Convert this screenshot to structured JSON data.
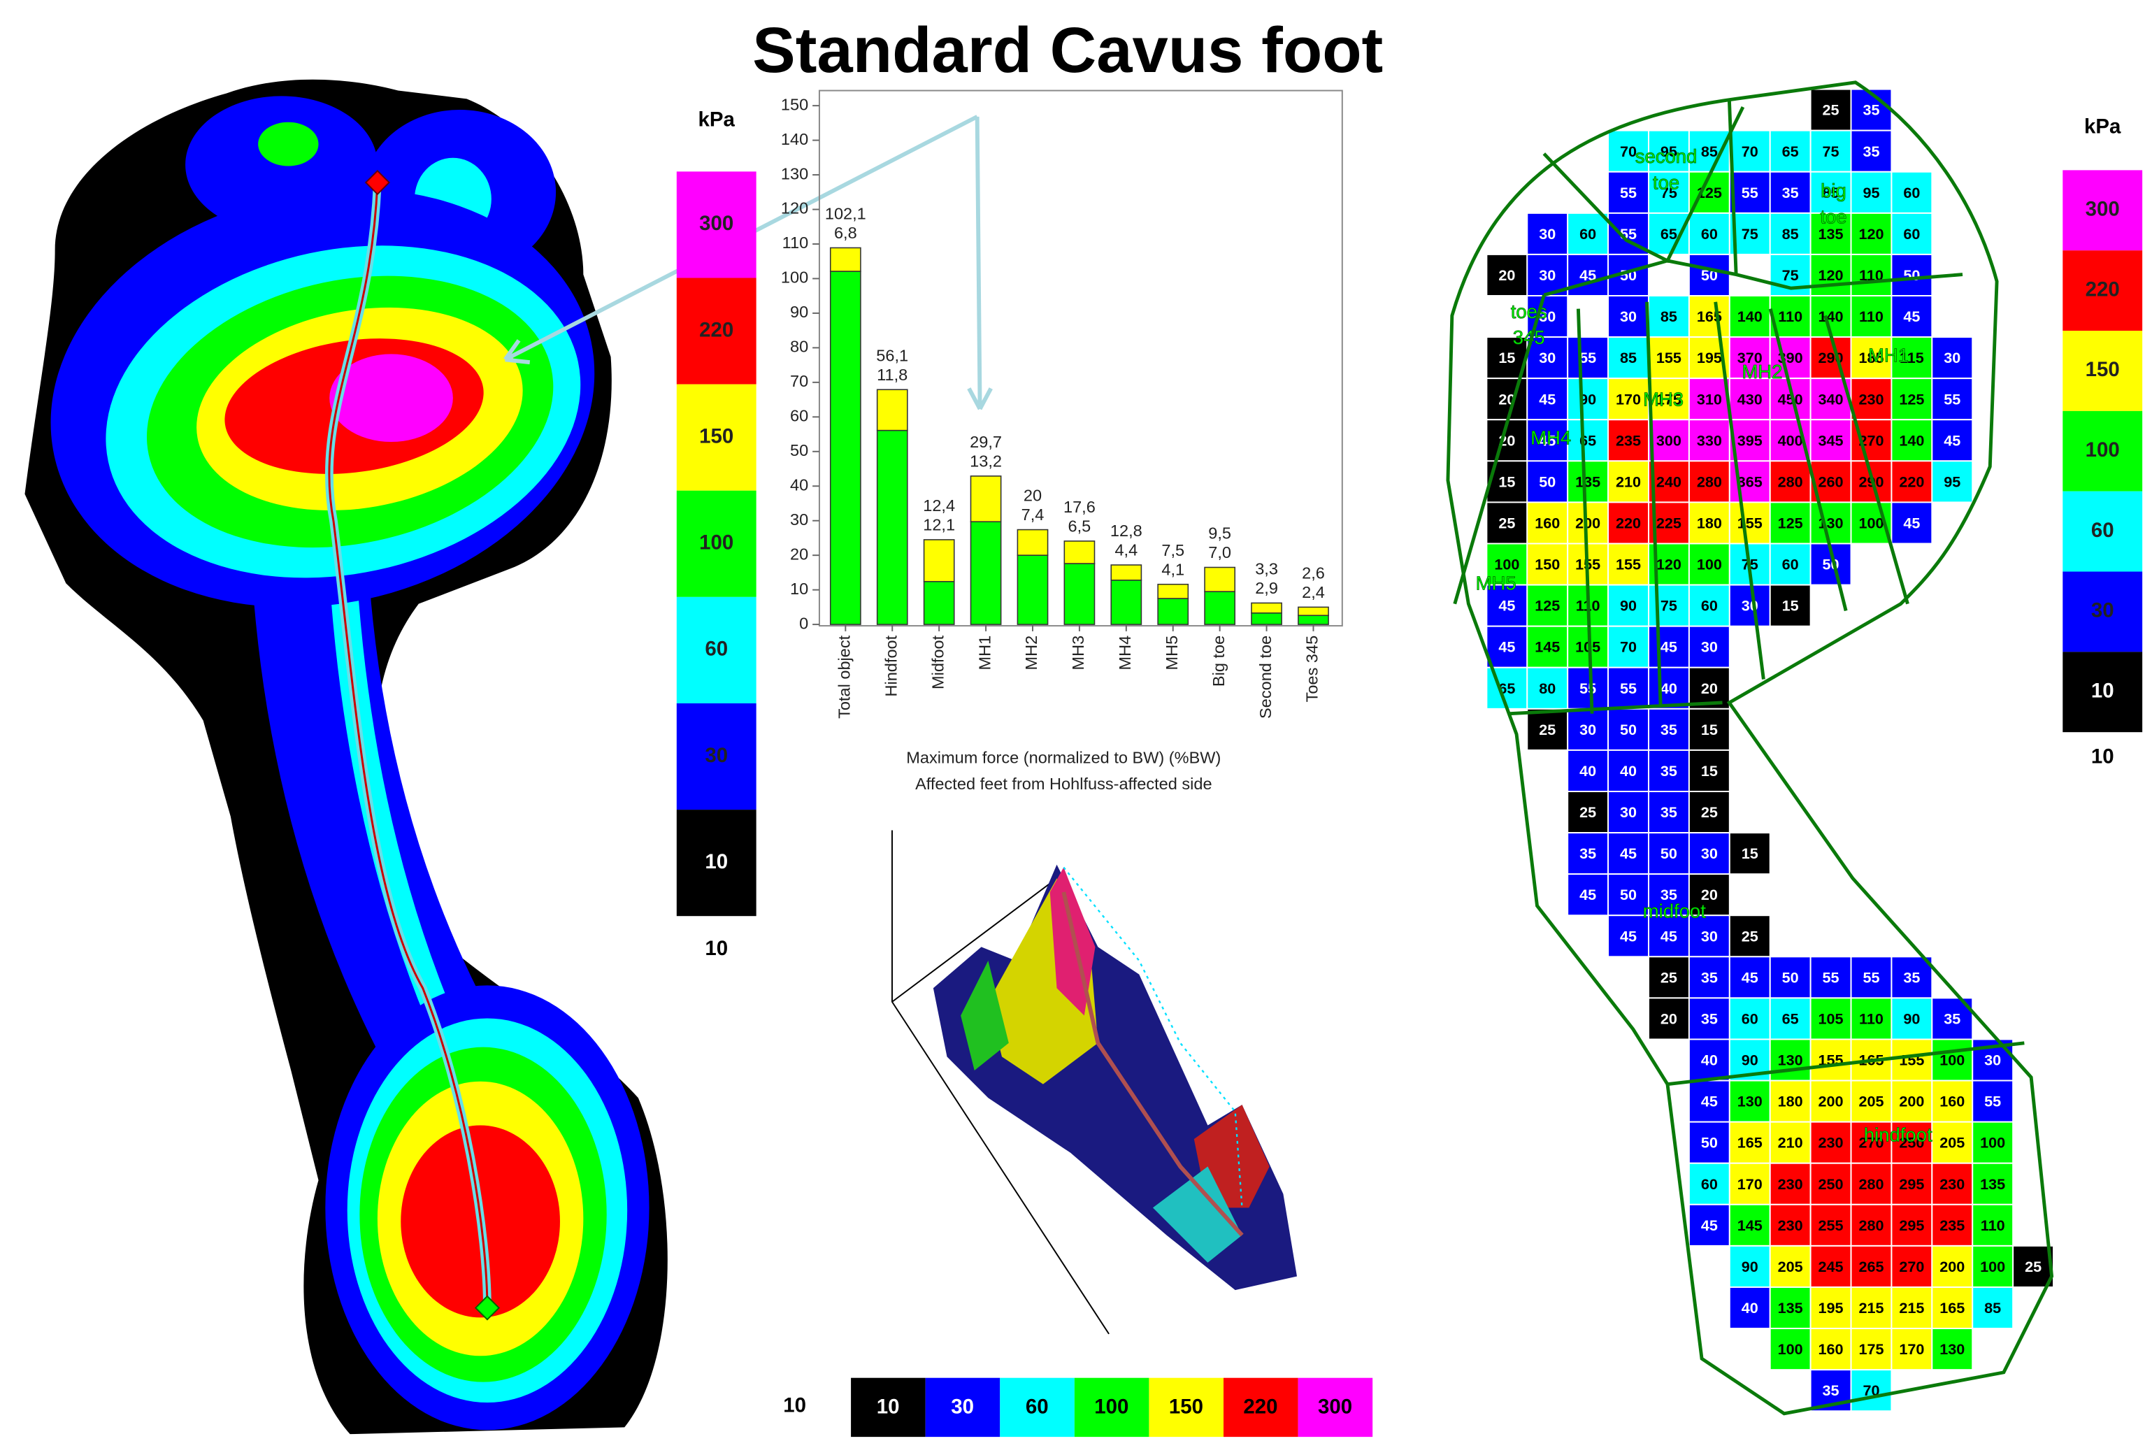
{
  "title": "Standard Cavus foot",
  "chart_data": {
    "type": "bar",
    "stacked": true,
    "categories": [
      "Total object",
      "Hindfoot",
      "Midfoot",
      "MH1",
      "MH2",
      "MH3",
      "MH4",
      "MH5",
      "Big toe",
      "Second toe",
      "Toes 345"
    ],
    "series": [
      {
        "color": "#00ff00",
        "values": [
          102.1,
          56.1,
          12.4,
          29.7,
          20,
          17.6,
          12.8,
          7.5,
          9.5,
          3.3,
          2.6
        ],
        "value_labels": [
          "102,1",
          "56,1",
          "12,4",
          "29,7",
          "20",
          "17,6",
          "12,8",
          "7,5",
          "9,5",
          "3,3",
          "2,6"
        ]
      },
      {
        "color": "#ffff00",
        "values": [
          6.8,
          11.8,
          12.1,
          13.2,
          7.4,
          6.5,
          4.4,
          4.1,
          7.0,
          2.9,
          2.4
        ],
        "value_labels": [
          "6,8",
          "11,8",
          "12,1",
          "13,2",
          "7,4",
          "6,5",
          "4,4",
          "4,1",
          "7,0",
          "2,9",
          "2,4"
        ]
      }
    ],
    "xlabel": [
      "Maximum force (normalized to BW) (%BW)",
      "Affected feet from Hohlfuss-affected side"
    ],
    "ylim": [
      0,
      150
    ],
    "yticks": [
      0,
      10,
      20,
      30,
      40,
      50,
      60,
      70,
      80,
      90,
      100,
      110,
      120,
      130,
      140,
      150
    ],
    "grid": false
  },
  "color_scale": {
    "unit": "kPa",
    "floor": 10,
    "levels": [
      {
        "value": 10,
        "color": "#000000"
      },
      {
        "value": 30,
        "color": "#0000ff"
      },
      {
        "value": 60,
        "color": "#00ffff"
      },
      {
        "value": 100,
        "color": "#00ff00"
      },
      {
        "value": 150,
        "color": "#ffff00"
      },
      {
        "value": 220,
        "color": "#ff0000"
      },
      {
        "value": 300,
        "color": "#ff00ff"
      }
    ]
  },
  "foot_map": {
    "regions": [
      [
        "second",
        "toe"
      ],
      [
        "big",
        "toe"
      ],
      [
        "toes",
        "345"
      ],
      [
        "MH1"
      ],
      [
        "MH2"
      ],
      [
        "MH3"
      ],
      [
        "MH4"
      ],
      [
        "MH5"
      ],
      [
        "midfoot"
      ],
      [
        "hindfoot"
      ]
    ],
    "rows": [
      [
        null,
        null,
        null,
        null,
        null,
        null,
        null,
        null,
        25,
        35,
        null,
        null,
        null,
        null
      ],
      [
        null,
        null,
        null,
        70,
        95,
        85,
        70,
        65,
        75,
        35,
        null,
        null,
        null,
        null
      ],
      [
        null,
        null,
        null,
        55,
        75,
        125,
        55,
        35,
        85,
        95,
        60,
        null,
        null,
        null
      ],
      [
        null,
        30,
        60,
        55,
        65,
        60,
        75,
        85,
        135,
        120,
        60,
        null,
        null,
        null
      ],
      [
        20,
        30,
        45,
        50,
        null,
        50,
        null,
        75,
        120,
        110,
        50,
        null,
        null,
        null
      ],
      [
        null,
        30,
        null,
        30,
        85,
        165,
        140,
        110,
        140,
        110,
        45,
        null,
        null,
        null
      ],
      [
        15,
        30,
        55,
        85,
        155,
        195,
        370,
        390,
        290,
        185,
        115,
        30,
        null,
        null
      ],
      [
        20,
        45,
        90,
        170,
        175,
        310,
        430,
        450,
        340,
        230,
        125,
        55,
        null,
        null
      ],
      [
        20,
        45,
        65,
        235,
        300,
        330,
        395,
        400,
        345,
        270,
        140,
        45,
        null,
        null
      ],
      [
        15,
        50,
        135,
        210,
        240,
        280,
        365,
        280,
        260,
        290,
        220,
        95,
        null,
        null
      ],
      [
        25,
        160,
        200,
        220,
        225,
        180,
        155,
        125,
        130,
        100,
        45,
        null,
        null,
        null
      ],
      [
        100,
        150,
        155,
        155,
        120,
        100,
        75,
        60,
        50,
        null,
        null,
        null,
        null,
        null
      ],
      [
        45,
        125,
        110,
        90,
        75,
        60,
        30,
        15,
        null,
        null,
        null,
        null,
        null,
        null
      ],
      [
        45,
        145,
        105,
        70,
        45,
        30,
        null,
        null,
        null,
        null,
        null,
        null,
        null,
        null
      ],
      [
        65,
        80,
        55,
        55,
        40,
        20,
        null,
        null,
        null,
        null,
        null,
        null,
        null,
        null
      ],
      [
        null,
        25,
        30,
        50,
        35,
        15,
        null,
        null,
        null,
        null,
        null,
        null,
        null,
        null
      ],
      [
        null,
        null,
        40,
        40,
        35,
        15,
        null,
        null,
        null,
        null,
        null,
        null,
        null,
        null
      ],
      [
        null,
        null,
        25,
        30,
        35,
        25,
        null,
        null,
        null,
        null,
        null,
        null,
        null,
        null
      ],
      [
        null,
        null,
        35,
        45,
        50,
        30,
        15,
        null,
        null,
        null,
        null,
        null,
        null,
        null
      ],
      [
        null,
        null,
        45,
        50,
        35,
        20,
        null,
        null,
        null,
        null,
        null,
        null,
        null,
        null
      ],
      [
        null,
        null,
        null,
        45,
        45,
        30,
        25,
        null,
        null,
        null,
        null,
        null,
        null,
        null
      ],
      [
        null,
        null,
        null,
        null,
        25,
        35,
        45,
        50,
        55,
        55,
        35,
        null,
        null,
        null
      ],
      [
        null,
        null,
        null,
        null,
        20,
        35,
        60,
        65,
        105,
        110,
        90,
        35,
        null,
        null
      ],
      [
        null,
        null,
        null,
        null,
        null,
        40,
        90,
        130,
        155,
        165,
        155,
        100,
        30,
        null
      ],
      [
        null,
        null,
        null,
        null,
        null,
        45,
        130,
        180,
        200,
        205,
        200,
        160,
        55,
        null
      ],
      [
        null,
        null,
        null,
        null,
        null,
        50,
        165,
        210,
        230,
        270,
        250,
        205,
        100,
        null
      ],
      [
        null,
        null,
        null,
        null,
        null,
        60,
        170,
        230,
        250,
        280,
        295,
        230,
        135,
        null
      ],
      [
        null,
        null,
        null,
        null,
        null,
        45,
        145,
        230,
        255,
        280,
        295,
        235,
        110,
        null
      ],
      [
        null,
        null,
        null,
        null,
        null,
        null,
        90,
        205,
        245,
        265,
        270,
        200,
        100,
        25
      ],
      [
        null,
        null,
        null,
        null,
        null,
        null,
        40,
        135,
        195,
        215,
        215,
        165,
        85,
        null
      ],
      [
        null,
        null,
        null,
        null,
        null,
        null,
        null,
        100,
        160,
        175,
        170,
        130,
        null,
        null
      ],
      [
        null,
        null,
        null,
        null,
        null,
        null,
        null,
        null,
        35,
        70,
        null,
        null,
        null,
        null
      ]
    ]
  }
}
